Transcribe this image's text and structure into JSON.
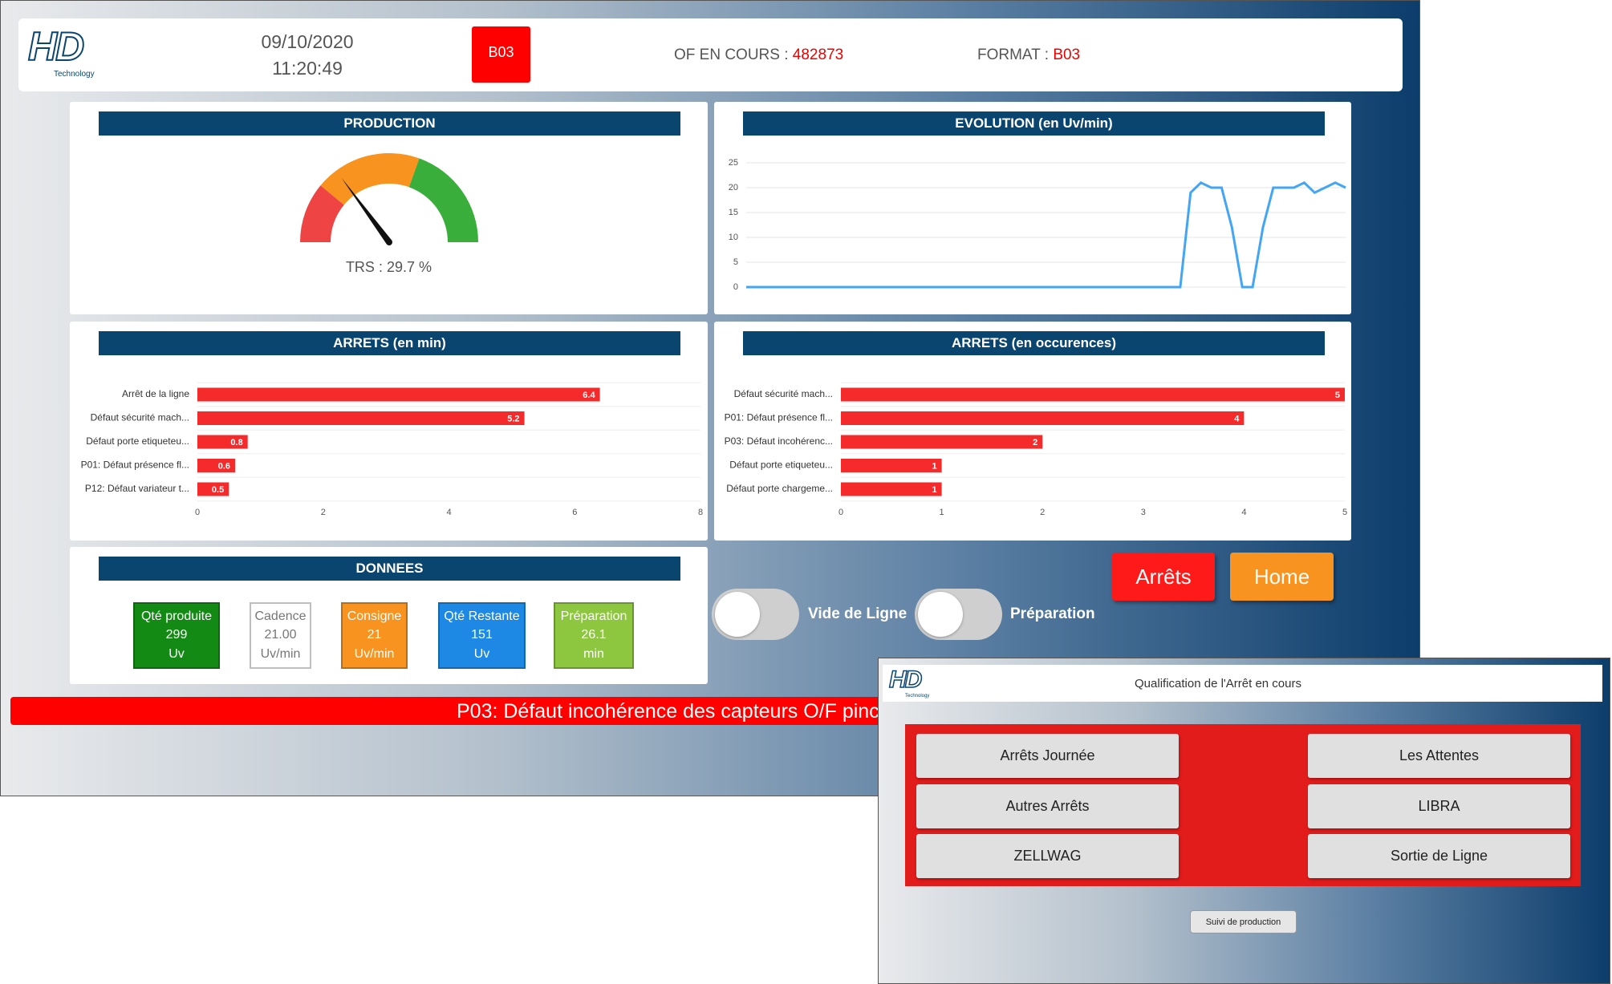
{
  "header": {
    "logo": "HD",
    "logo_sub": "Technology",
    "date": "09/10/2020",
    "time": "11:20:49",
    "badge": "B03",
    "of_label": "OF EN COURS :",
    "of_value": "482873",
    "format_label": "FORMAT :",
    "format_value": "B03"
  },
  "chart_data": [
    {
      "type": "gauge",
      "title": "PRODUCTION",
      "label": "TRS :",
      "value": 29.7,
      "unit": "%",
      "lim": [
        0,
        100
      ],
      "zones": [
        {
          "to": 22,
          "color": "#ef4444"
        },
        {
          "to": 61,
          "color": "#f7931e"
        },
        {
          "to": 100,
          "color": "#3aae3a"
        }
      ]
    },
    {
      "type": "line",
      "title": "EVOLUTION (en Uv/min)",
      "ylim": [
        0,
        25
      ],
      "yticks": [
        0,
        5,
        10,
        15,
        20,
        25
      ],
      "grid": true,
      "series": [
        {
          "color": "#42a5f5",
          "values": [
            0,
            0,
            0,
            0,
            0,
            0,
            0,
            0,
            0,
            0,
            0,
            0,
            0,
            0,
            0,
            0,
            0,
            0,
            0,
            0,
            0,
            0,
            0,
            0,
            0,
            0,
            0,
            0,
            0,
            0,
            0,
            0,
            0,
            0,
            0,
            0,
            0,
            0,
            0,
            0,
            0,
            0,
            0,
            19,
            21,
            20,
            20,
            12,
            0,
            0,
            12,
            20,
            20,
            20,
            21,
            19,
            20,
            21,
            20
          ]
        }
      ]
    },
    {
      "type": "bar",
      "title": "ARRETS (en min)",
      "orientation": "horizontal",
      "color": "#f52a2a",
      "categories": [
        "Arrêt de la ligne",
        "Défaut sécurité mach...",
        "Défaut porte etiqueteu...",
        "P01: Défaut présence fl...",
        "P12: Défaut variateur t..."
      ],
      "values": [
        6.4,
        5.2,
        0.8,
        0.6,
        0.5
      ],
      "xlim": [
        0,
        8
      ],
      "xticks": [
        0,
        2,
        4,
        6,
        8
      ]
    },
    {
      "type": "bar",
      "title": "ARRETS (en occurences)",
      "orientation": "horizontal",
      "color": "#f52a2a",
      "categories": [
        "Défaut sécurité mach...",
        "P01: Défaut présence fl...",
        "P03: Défaut incohérenc...",
        "Défaut porte etiqueteu...",
        "Défaut porte chargeme..."
      ],
      "values": [
        5,
        4,
        2,
        1,
        1
      ],
      "xlim": [
        0,
        5
      ],
      "xticks": [
        0,
        1,
        2,
        3,
        4,
        5
      ]
    }
  ],
  "donnees": {
    "title": "DONNEES",
    "tiles": [
      {
        "label": "Qté produite",
        "value": "299",
        "unit": "Uv"
      },
      {
        "label": "Cadence",
        "value": "21.00",
        "unit": "Uv/min"
      },
      {
        "label": "Consigne",
        "value": "21",
        "unit": "Uv/min"
      },
      {
        "label": "Qté Restante",
        "value": "151",
        "unit": "Uv"
      },
      {
        "label": "Préparation",
        "value": "26.1",
        "unit": "min"
      }
    ]
  },
  "toggles": [
    "Vide de Ligne",
    "Préparation"
  ],
  "buttons": [
    "Arrêts",
    "Home"
  ],
  "alarm": "P03: Défaut incohérence des capteurs O/F pinc",
  "dialog": {
    "logo": "HD",
    "logo_sub": "Technology",
    "title": "Qualification de l'Arrêt en cours",
    "buttons": [
      "Arrêts Journée",
      "Les Attentes",
      "Autres Arrêts",
      "LIBRA",
      "ZELLWAG",
      "Sortie de Ligne"
    ],
    "footer_button": "Suivi de production"
  }
}
